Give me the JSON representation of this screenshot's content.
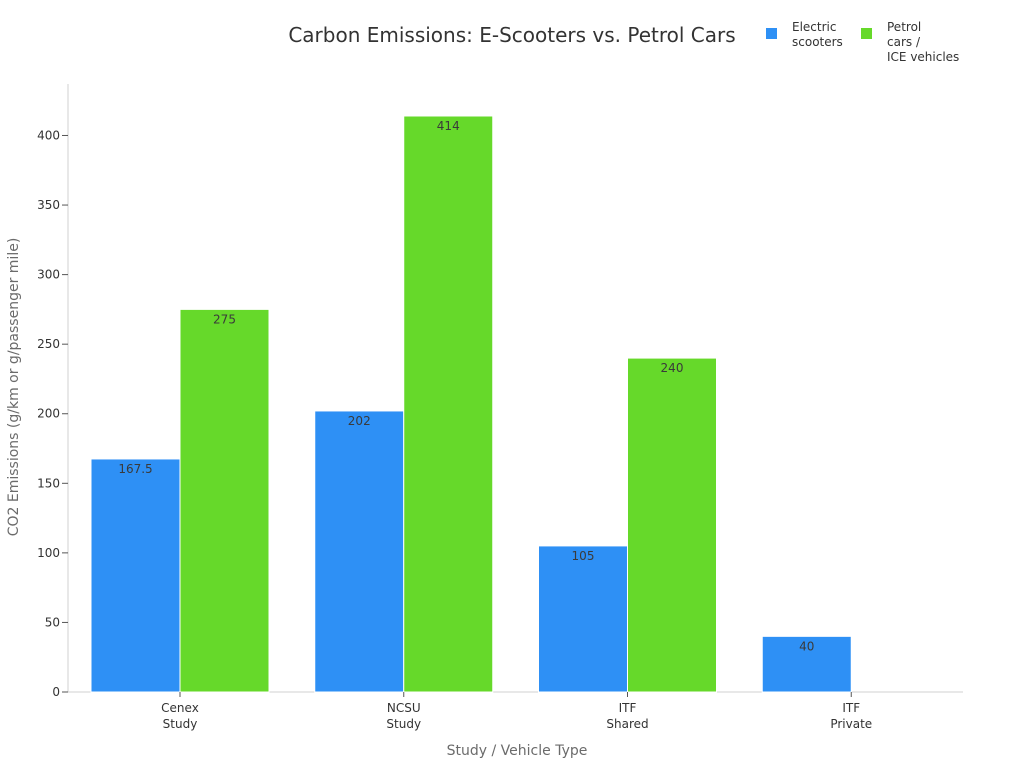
{
  "chart_data": {
    "type": "bar",
    "title": "Carbon Emissions: E-Scooters vs. Petrol Cars",
    "xlabel": "Study / Vehicle Type",
    "ylabel": "CO2 Emissions (g/km or g/passenger mile)",
    "categories": [
      [
        "Cenex",
        "Study"
      ],
      [
        "NCSU",
        "Study"
      ],
      [
        "ITF",
        "Shared"
      ],
      [
        "ITF",
        "Private"
      ]
    ],
    "series": [
      {
        "name": [
          "Electric",
          "scooters"
        ],
        "color": "#2e90f5",
        "values": [
          167.5,
          202,
          105,
          40
        ],
        "labels": [
          "167.5",
          "202",
          "105",
          "40"
        ]
      },
      {
        "name": [
          "Petrol",
          "cars /",
          "ICE vehicles"
        ],
        "color": "#66d92a",
        "values": [
          275,
          414,
          240,
          null
        ],
        "labels": [
          "275",
          "414",
          "240",
          ""
        ]
      }
    ],
    "ylim": [
      0,
      437
    ],
    "yticks": [
      0,
      50,
      100,
      150,
      200,
      250,
      300,
      350,
      400
    ],
    "legend_position": "top-right",
    "grid": false
  }
}
